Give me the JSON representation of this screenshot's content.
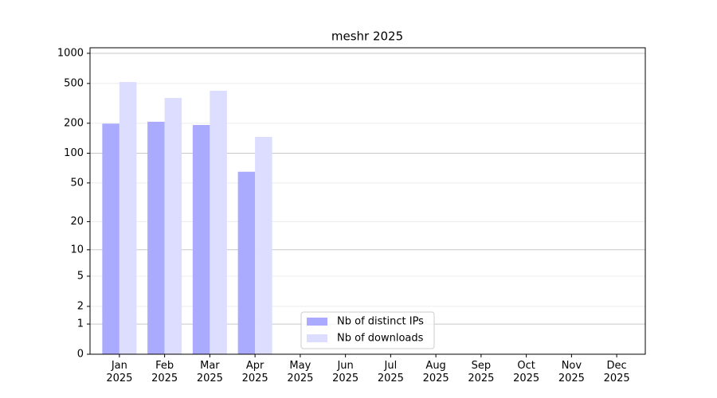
{
  "chart_data": {
    "type": "bar",
    "title": "meshr 2025",
    "categories": [
      "Jan\n2025",
      "Feb\n2025",
      "Mar\n2025",
      "Apr\n2025",
      "May\n2025",
      "Jun\n2025",
      "Jul\n2025",
      "Aug\n2025",
      "Sep\n2025",
      "Oct\n2025",
      "Nov\n2025",
      "Dec\n2025"
    ],
    "series": [
      {
        "name": "Nb of distinct IPs",
        "color": "#aaaaff",
        "values": [
          198,
          207,
          192,
          65,
          null,
          null,
          null,
          null,
          null,
          null,
          null,
          null
        ]
      },
      {
        "name": "Nb of downloads",
        "color": "#ddddff",
        "values": [
          517,
          358,
          423,
          146,
          null,
          null,
          null,
          null,
          null,
          null,
          null,
          null
        ]
      }
    ],
    "yscale": "log1p",
    "ylim": [
      0,
      1136
    ],
    "yticks": [
      0,
      1,
      2,
      5,
      10,
      20,
      50,
      100,
      200,
      500,
      1000
    ],
    "grid": true,
    "legend": "lower center"
  }
}
